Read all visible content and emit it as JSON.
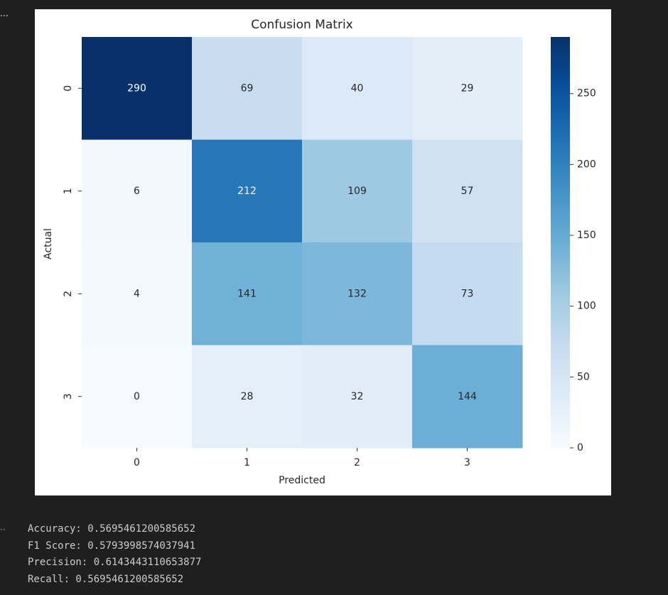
{
  "chart_data": {
    "type": "heatmap",
    "title": "Confusion Matrix",
    "xlabel": "Predicted",
    "ylabel": "Actual",
    "x_categories": [
      "0",
      "1",
      "2",
      "3"
    ],
    "y_categories": [
      "0",
      "1",
      "2",
      "3"
    ],
    "values": [
      [
        290,
        69,
        40,
        29
      ],
      [
        6,
        212,
        109,
        57
      ],
      [
        4,
        141,
        132,
        73
      ],
      [
        0,
        28,
        32,
        144
      ]
    ],
    "colormap": [
      "#f7fbff",
      "#deebf7",
      "#c6dbef",
      "#9ecae1",
      "#6baed6",
      "#4292c6",
      "#2171b5",
      "#08519c",
      "#08306b"
    ],
    "clim": [
      0,
      290
    ],
    "cticks": [
      0,
      50,
      100,
      150,
      200,
      250
    ]
  },
  "output": [
    "Accuracy: 0.5695461200585652",
    "F1 Score: 0.5793998574037941",
    "Precision: 0.6143443110653877",
    "Recall: 0.5695461200585652"
  ]
}
